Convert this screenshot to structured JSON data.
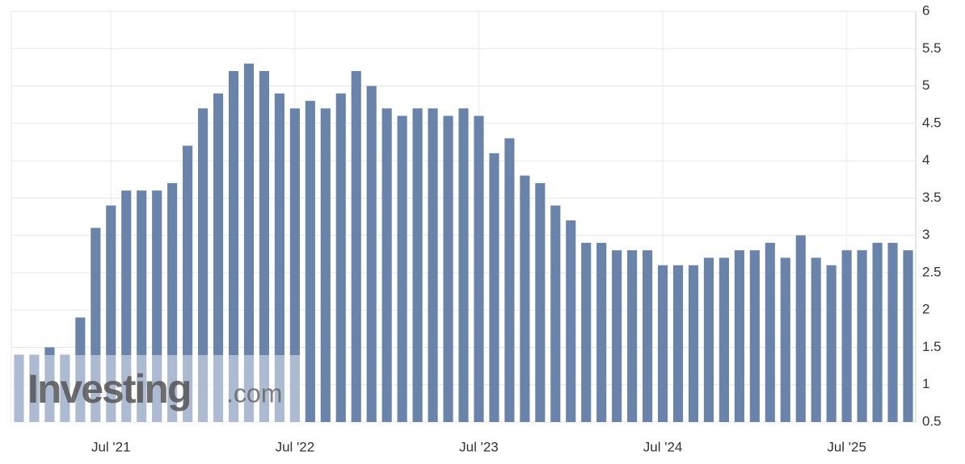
{
  "chart_data": {
    "type": "bar",
    "categories": [
      null,
      null,
      null,
      null,
      null,
      null,
      "Jul '21",
      null,
      null,
      null,
      null,
      null,
      null,
      null,
      null,
      null,
      null,
      null,
      "Jul '22",
      null,
      null,
      null,
      null,
      null,
      null,
      null,
      null,
      null,
      null,
      null,
      "Jul '23",
      null,
      null,
      null,
      null,
      null,
      null,
      null,
      null,
      null,
      null,
      null,
      "Jul '24",
      null,
      null,
      null,
      null,
      null,
      null,
      null,
      null,
      null,
      null,
      null,
      "Jul '25",
      null,
      null,
      null,
      null
    ],
    "values": [
      1.4,
      1.4,
      1.5,
      1.4,
      1.9,
      3.1,
      3.4,
      3.6,
      3.6,
      3.6,
      3.7,
      4.2,
      4.7,
      4.9,
      5.2,
      5.3,
      5.2,
      4.9,
      4.7,
      4.8,
      4.7,
      4.9,
      5.2,
      5.0,
      4.7,
      4.6,
      4.7,
      4.7,
      4.6,
      4.7,
      4.6,
      4.1,
      4.3,
      3.8,
      3.7,
      3.4,
      3.2,
      2.9,
      2.9,
      2.8,
      2.8,
      2.8,
      2.6,
      2.6,
      2.6,
      2.7,
      2.7,
      2.8,
      2.8,
      2.9,
      2.7,
      3.0,
      2.7,
      2.6,
      2.8,
      2.8,
      2.9,
      2.9,
      2.8
    ],
    "color": "#6983ab",
    "ylim": [
      0.5,
      6
    ],
    "yticks": [
      0.5,
      1,
      1.5,
      2,
      2.5,
      3,
      3.5,
      4,
      4.5,
      5,
      5.5,
      6
    ],
    "grid": true,
    "watermark": {
      "brand": "Investing",
      "suffix": ".com"
    }
  }
}
